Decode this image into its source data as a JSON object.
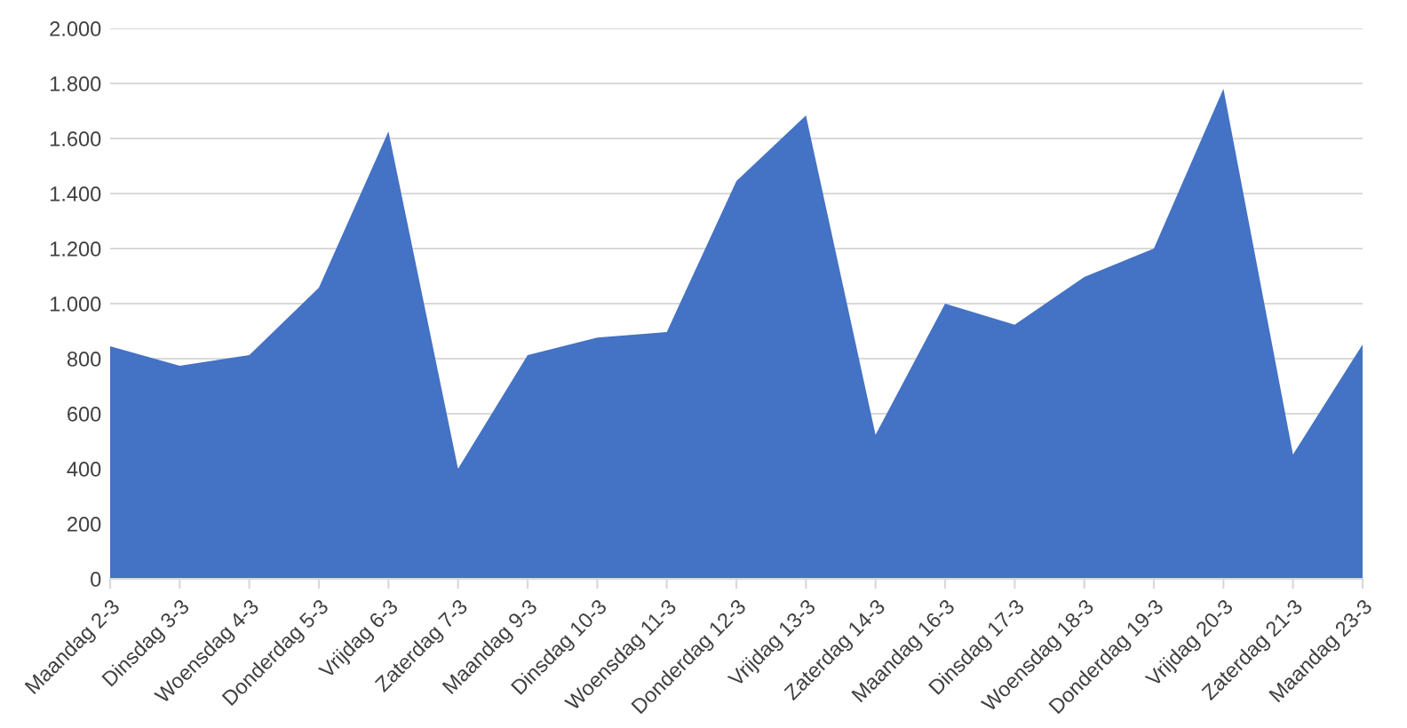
{
  "chart_data": {
    "type": "area",
    "categories": [
      "Maandag 2-3",
      "Dinsdag 3-3",
      "Woensdag 4-3",
      "Donderdag 5-3",
      "Vrijdag 6-3",
      "Zaterdag 7-3",
      "Maandag 9-3",
      "Dinsdag 10-3",
      "Woensdag 11-3",
      "Donderdag 12-3",
      "Vrijdag 13-3",
      "Zaterdag 14-3",
      "Maandag 16-3",
      "Dinsdag 17-3",
      "Woensdag 18-3",
      "Donderdag 19-3",
      "Vrijdag 20-3",
      "Zaterdag 21-3",
      "Maandag 23-3"
    ],
    "series": [
      {
        "color": "#4472c4",
        "values": [
          845,
          774,
          813,
          1058,
          1626,
          400,
          813,
          877,
          897,
          1445,
          1684,
          523,
          1000,
          923,
          1097,
          1200,
          1781,
          452,
          852
        ]
      }
    ],
    "ylim": [
      0,
      2000
    ],
    "yticks": [
      {
        "value": 0,
        "label": "0"
      },
      {
        "value": 200,
        "label": "200"
      },
      {
        "value": 400,
        "label": "400"
      },
      {
        "value": 600,
        "label": "600"
      },
      {
        "value": 800,
        "label": "800"
      },
      {
        "value": 1000,
        "label": "1.000"
      },
      {
        "value": 1200,
        "label": "1.200"
      },
      {
        "value": 1400,
        "label": "1.400"
      },
      {
        "value": 1600,
        "label": "1.600"
      },
      {
        "value": 1800,
        "label": "1.800"
      },
      {
        "value": 2000,
        "label": "2.000"
      }
    ],
    "grid": "y",
    "legend": false
  }
}
